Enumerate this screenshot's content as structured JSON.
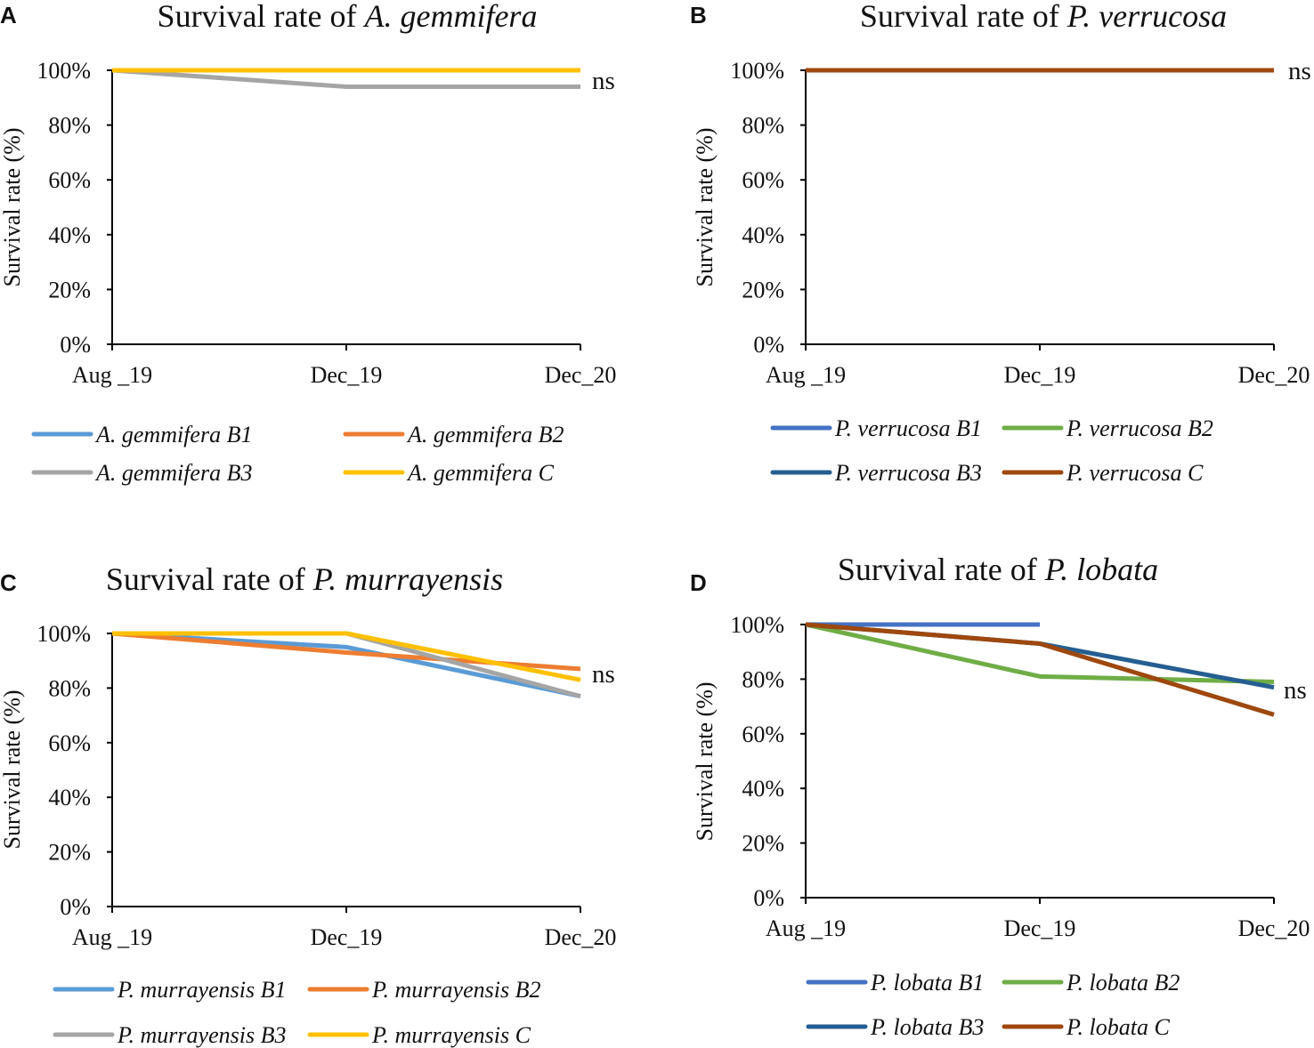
{
  "chart_data": [
    {
      "panel": "A",
      "type": "line",
      "title_prefix": "Survival rate of ",
      "title_species": "A. gemmifera",
      "ylabel": "Survival rate (%)",
      "xlabel": "",
      "categories": [
        "Aug _19",
        "Dec_19",
        "Dec_20"
      ],
      "ylim": [
        0,
        100
      ],
      "yticks": [
        "0%",
        "20%",
        "40%",
        "60%",
        "80%",
        "100%"
      ],
      "annotation": "ns",
      "series": [
        {
          "name": "A. gemmifera B1",
          "color": "#5b9bd5",
          "values": [
            100,
            100,
            100
          ]
        },
        {
          "name": "A. gemmifera B2",
          "color": "#ed7d31",
          "values": [
            100,
            100,
            100
          ]
        },
        {
          "name": "A. gemmifera B3",
          "color": "#a5a5a5",
          "values": [
            100,
            94,
            94
          ]
        },
        {
          "name": "A. gemmifera C",
          "color": "#ffc000",
          "values": [
            100,
            100,
            100
          ]
        }
      ]
    },
    {
      "panel": "B",
      "type": "line",
      "title_prefix": "Survival rate of ",
      "title_species": "P. verrucosa",
      "ylabel": "Survival rate (%)",
      "xlabel": "",
      "categories": [
        "Aug _19",
        "Dec_19",
        "Dec_20"
      ],
      "ylim": [
        0,
        100
      ],
      "yticks": [
        "0%",
        "20%",
        "40%",
        "60%",
        "80%",
        "100%"
      ],
      "annotation": "ns",
      "series": [
        {
          "name": "P. verrucosa B1",
          "color": "#4472c4",
          "values": [
            100,
            100,
            100
          ]
        },
        {
          "name": "P. verrucosa B2",
          "color": "#70ad47",
          "values": [
            100,
            100,
            100
          ]
        },
        {
          "name": "P. verrucosa B3",
          "color": "#255e91",
          "values": [
            100,
            100,
            100
          ]
        },
        {
          "name": "P. verrucosa C",
          "color": "#9e480e",
          "values": [
            100,
            100,
            100
          ]
        }
      ]
    },
    {
      "panel": "C",
      "type": "line",
      "title_prefix": "Survival rate of ",
      "title_species": "P. murrayensis",
      "ylabel": "Survival rate (%)",
      "xlabel": "",
      "categories": [
        "Aug _19",
        "Dec_19",
        "Dec_20"
      ],
      "ylim": [
        0,
        100
      ],
      "yticks": [
        "0%",
        "20%",
        "40%",
        "60%",
        "80%",
        "100%"
      ],
      "annotation": "ns",
      "series": [
        {
          "name": "P. murrayensis B1",
          "color": "#5b9bd5",
          "values": [
            100,
            95,
            77
          ]
        },
        {
          "name": "P. murrayensis B2",
          "color": "#ed7d31",
          "values": [
            100,
            93,
            87
          ]
        },
        {
          "name": "P. murrayensis B3",
          "color": "#a5a5a5",
          "values": [
            100,
            100,
            77
          ]
        },
        {
          "name": "P. murrayensis C",
          "color": "#ffc000",
          "values": [
            100,
            100,
            83
          ]
        }
      ]
    },
    {
      "panel": "D",
      "type": "line",
      "title_prefix": "Survival rate of ",
      "title_species": "P. lobata",
      "ylabel": "Survival rate (%)",
      "xlabel": "",
      "categories": [
        "Aug _19",
        "Dec_19",
        "Dec_20"
      ],
      "ylim": [
        0,
        100
      ],
      "yticks": [
        "0%",
        "20%",
        "40%",
        "60%",
        "80%",
        "100%"
      ],
      "annotation": "ns",
      "series": [
        {
          "name": "P. lobata B1",
          "color": "#4472c4",
          "values": [
            100,
            100,
            null
          ]
        },
        {
          "name": "P. lobata B2",
          "color": "#70ad47",
          "values": [
            100,
            81,
            79
          ]
        },
        {
          "name": "P. lobata B3",
          "color": "#255e91",
          "values": [
            100,
            93,
            77
          ]
        },
        {
          "name": "P. lobata C",
          "color": "#9e480e",
          "values": [
            100,
            93,
            67
          ]
        }
      ]
    }
  ]
}
